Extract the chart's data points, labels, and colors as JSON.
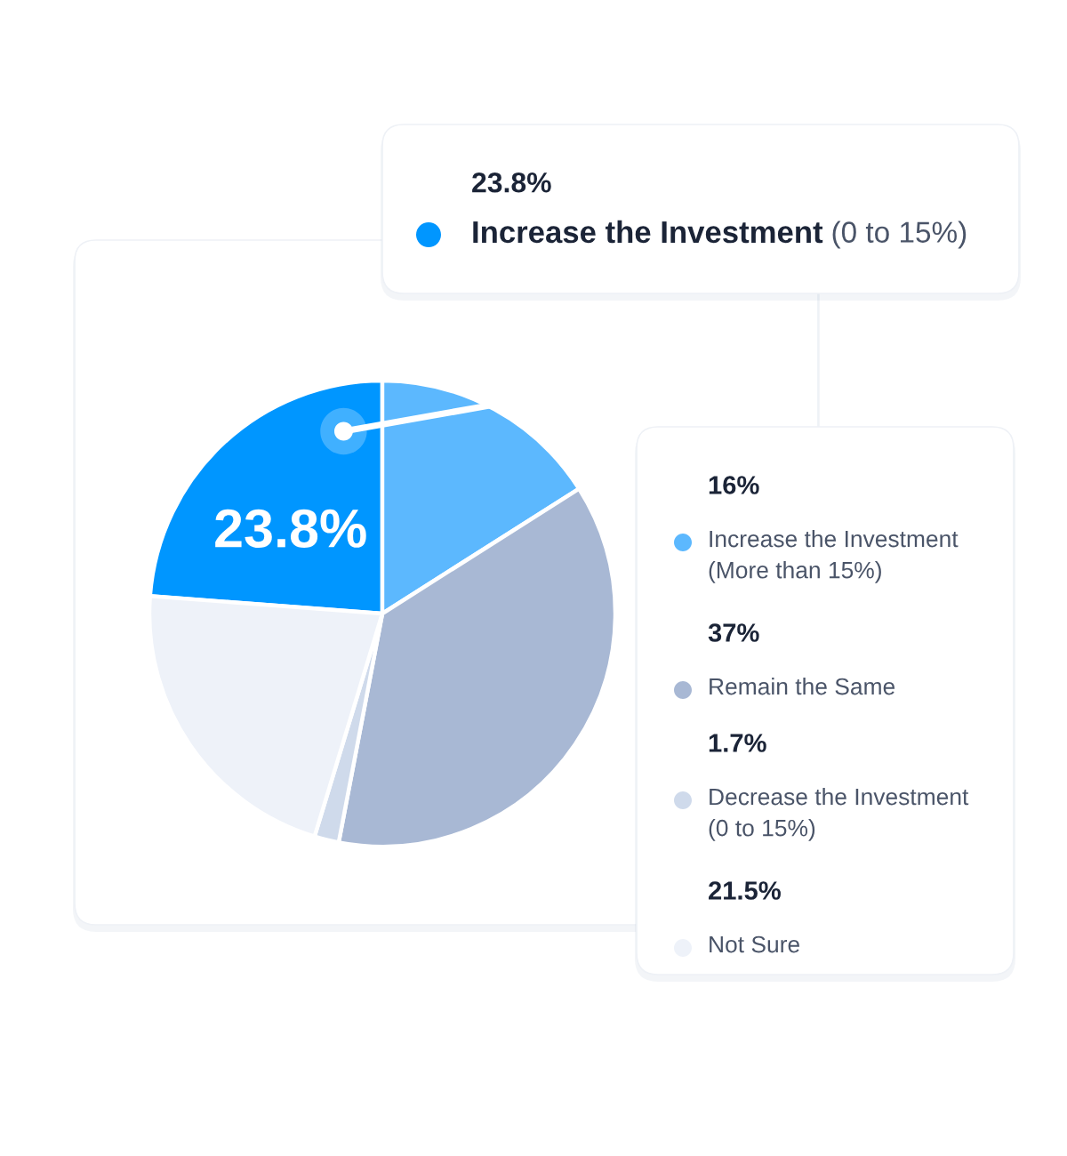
{
  "chart_data": {
    "type": "pie",
    "categories": [
      "Increase the Investment (0 to 15%)",
      "Increase the Investment (More than 15%)",
      "Remain the Same",
      "Decrease the Investment (0 to 15%)",
      "Not Sure"
    ],
    "values": [
      23.8,
      16,
      37,
      1.7,
      21.5
    ],
    "colors": [
      "#0096ff",
      "#5cb8fe",
      "#a8b8d4",
      "#cfdaeb",
      "#eef2f9"
    ],
    "value_labels": [
      "23.8%",
      null,
      null,
      null,
      null
    ],
    "annotations": [
      "16%",
      "37%",
      "1.7%",
      "21.5%"
    ],
    "legend": "right"
  }
}
